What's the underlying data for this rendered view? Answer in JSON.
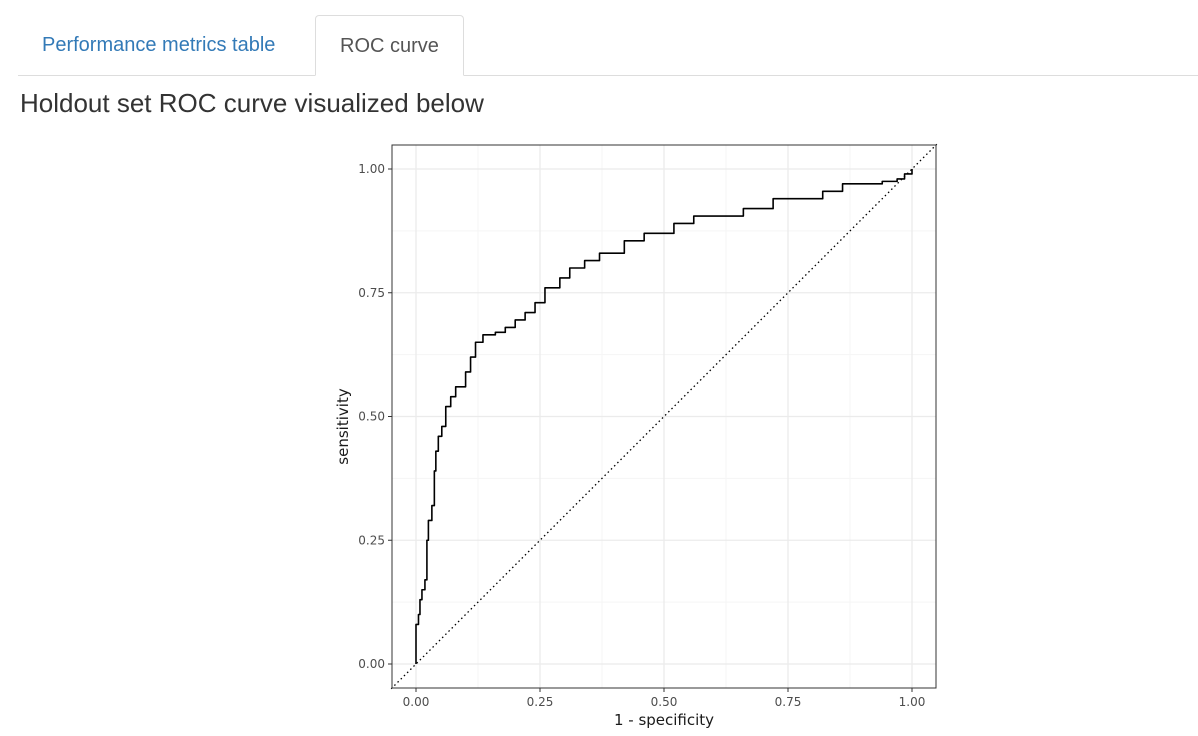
{
  "tabs": [
    {
      "label": "Performance metrics table",
      "active": false
    },
    {
      "label": "ROC curve",
      "active": true
    }
  ],
  "heading": "Holdout set ROC curve visualized below",
  "colors": {
    "link": "#337ab7",
    "curve": "#000000",
    "grid_major": "#ebebeb",
    "grid_minor": "#f5f5f5",
    "panel_border": "#333333"
  },
  "chart_data": {
    "type": "line",
    "title": "",
    "xlabel": "1 - specificity",
    "ylabel": "sensitivity",
    "xlim": [
      0,
      1
    ],
    "ylim": [
      0,
      1
    ],
    "x_ticks": [
      0,
      0.25,
      0.5,
      0.75,
      1
    ],
    "y_ticks": [
      0,
      0.25,
      0.5,
      0.75,
      1
    ],
    "x_tick_labels": [
      "0.00",
      "0.25",
      "0.50",
      "0.75",
      "1.00"
    ],
    "y_tick_labels": [
      "0.00",
      "0.25",
      "0.50",
      "0.75",
      "1.00"
    ],
    "grid": true,
    "reference_line": {
      "style": "dotted",
      "from": [
        0,
        0
      ],
      "to": [
        1,
        1
      ]
    },
    "roc_curve": [
      [
        0,
        0
      ],
      [
        0,
        0.08
      ],
      [
        0.005,
        0.1
      ],
      [
        0.008,
        0.13
      ],
      [
        0.012,
        0.15
      ],
      [
        0.018,
        0.17
      ],
      [
        0.022,
        0.25
      ],
      [
        0.025,
        0.29
      ],
      [
        0.032,
        0.32
      ],
      [
        0.037,
        0.39
      ],
      [
        0.04,
        0.43
      ],
      [
        0.045,
        0.46
      ],
      [
        0.052,
        0.48
      ],
      [
        0.06,
        0.52
      ],
      [
        0.07,
        0.54
      ],
      [
        0.08,
        0.56
      ],
      [
        0.1,
        0.59
      ],
      [
        0.11,
        0.62
      ],
      [
        0.12,
        0.65
      ],
      [
        0.135,
        0.665
      ],
      [
        0.16,
        0.67
      ],
      [
        0.18,
        0.68
      ],
      [
        0.2,
        0.695
      ],
      [
        0.22,
        0.71
      ],
      [
        0.24,
        0.73
      ],
      [
        0.26,
        0.76
      ],
      [
        0.29,
        0.78
      ],
      [
        0.31,
        0.8
      ],
      [
        0.34,
        0.815
      ],
      [
        0.37,
        0.83
      ],
      [
        0.42,
        0.855
      ],
      [
        0.46,
        0.87
      ],
      [
        0.52,
        0.89
      ],
      [
        0.56,
        0.905
      ],
      [
        0.64,
        0.905
      ],
      [
        0.66,
        0.92
      ],
      [
        0.72,
        0.94
      ],
      [
        0.78,
        0.94
      ],
      [
        0.82,
        0.955
      ],
      [
        0.86,
        0.97
      ],
      [
        0.94,
        0.975
      ],
      [
        0.97,
        0.98
      ],
      [
        0.985,
        0.99
      ],
      [
        1.0,
        1.0
      ]
    ]
  }
}
